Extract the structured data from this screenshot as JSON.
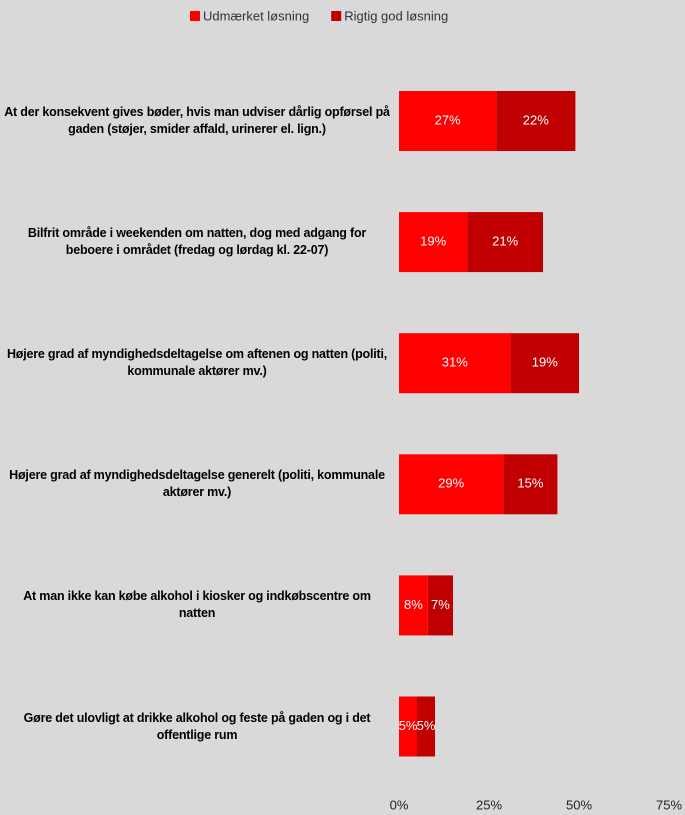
{
  "chart_data": {
    "type": "stacked_barh",
    "categories": [
      "At der konsekvent gives bøder, hvis man udviser dårlig opførsel på gaden (støjer, smider affald, urinerer el. lign.)",
      "Bilfrit område i weekenden om natten, dog med adgang for beboere i området (fredag og lørdag kl. 22-07)",
      "Højere grad af myndighedsdeltagelse om aftenen og natten (politi, kommunale aktører mv.)",
      "Højere grad af myndighedsdeltagelse generelt (politi, kommunale aktører mv.)",
      "At man ikke kan købe alkohol i kiosker og indkøbscentre om natten",
      "Gøre det ulovligt at drikke alkohol og feste på gaden og i det offentlige rum"
    ],
    "series": [
      {
        "name": "Udmærket løsning",
        "color": "#ff0000",
        "values": [
          27,
          19,
          31,
          29,
          8,
          5
        ],
        "value_labels": [
          "27%",
          "19%",
          "31%",
          "29%",
          "8%",
          "5%"
        ]
      },
      {
        "name": "Rigtig god løsning",
        "color": "#c00000",
        "values": [
          22,
          21,
          19,
          15,
          7,
          5
        ],
        "value_labels": [
          "22%",
          "21%",
          "19%",
          "15%",
          "7%",
          "5%"
        ]
      }
    ],
    "xlim": [
      0,
      75
    ],
    "xticks": [
      {
        "value": 0,
        "label": "0%"
      },
      {
        "value": 25,
        "label": "25%"
      },
      {
        "value": 50,
        "label": "50%"
      },
      {
        "value": 75,
        "label": "75%"
      }
    ],
    "grid": false,
    "legend": "top"
  }
}
